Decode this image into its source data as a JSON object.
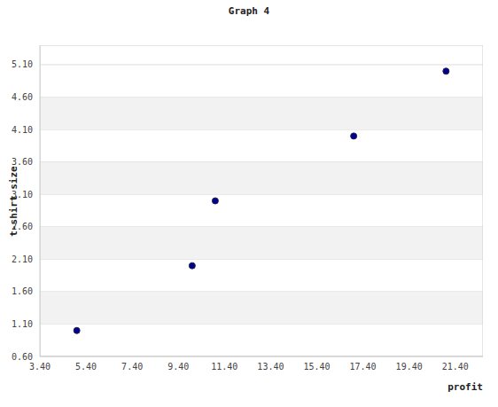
{
  "chart_data": {
    "type": "scatter",
    "title": "Graph 4",
    "x_label": "profit",
    "y_label": "t-shirt size",
    "x": [
      5,
      10,
      11,
      17,
      21
    ],
    "values": [
      1,
      2,
      3,
      4,
      5
    ],
    "color": "#00008b",
    "marker": "circle",
    "xlim": [
      3.4,
      22.6
    ],
    "ylim": [
      0.6,
      5.4
    ],
    "xticks": [
      {
        "value": 3.4,
        "label": "3.40"
      },
      {
        "value": 5.4,
        "label": "5.40"
      },
      {
        "value": 7.4,
        "label": "7.40"
      },
      {
        "value": 9.4,
        "label": "9.40"
      },
      {
        "value": 11.4,
        "label": "11.40"
      },
      {
        "value": 13.4,
        "label": "13.40"
      },
      {
        "value": 15.4,
        "label": "15.40"
      },
      {
        "value": 17.4,
        "label": "17.40"
      },
      {
        "value": 19.4,
        "label": "19.40"
      },
      {
        "value": 21.4,
        "label": "21.40"
      }
    ],
    "yticks": [
      {
        "value": 0.6,
        "label": "0.60"
      },
      {
        "value": 1.1,
        "label": "1.10"
      },
      {
        "value": 1.6,
        "label": "1.60"
      },
      {
        "value": 2.1,
        "label": "2.10"
      },
      {
        "value": 2.6,
        "label": "2.60"
      },
      {
        "value": 3.1,
        "label": "3.10"
      },
      {
        "value": 3.6,
        "label": "3.60"
      },
      {
        "value": 4.1,
        "label": "4.10"
      },
      {
        "value": 4.6,
        "label": "4.60"
      },
      {
        "value": 5.1,
        "label": "5.10"
      }
    ],
    "grid": true
  }
}
